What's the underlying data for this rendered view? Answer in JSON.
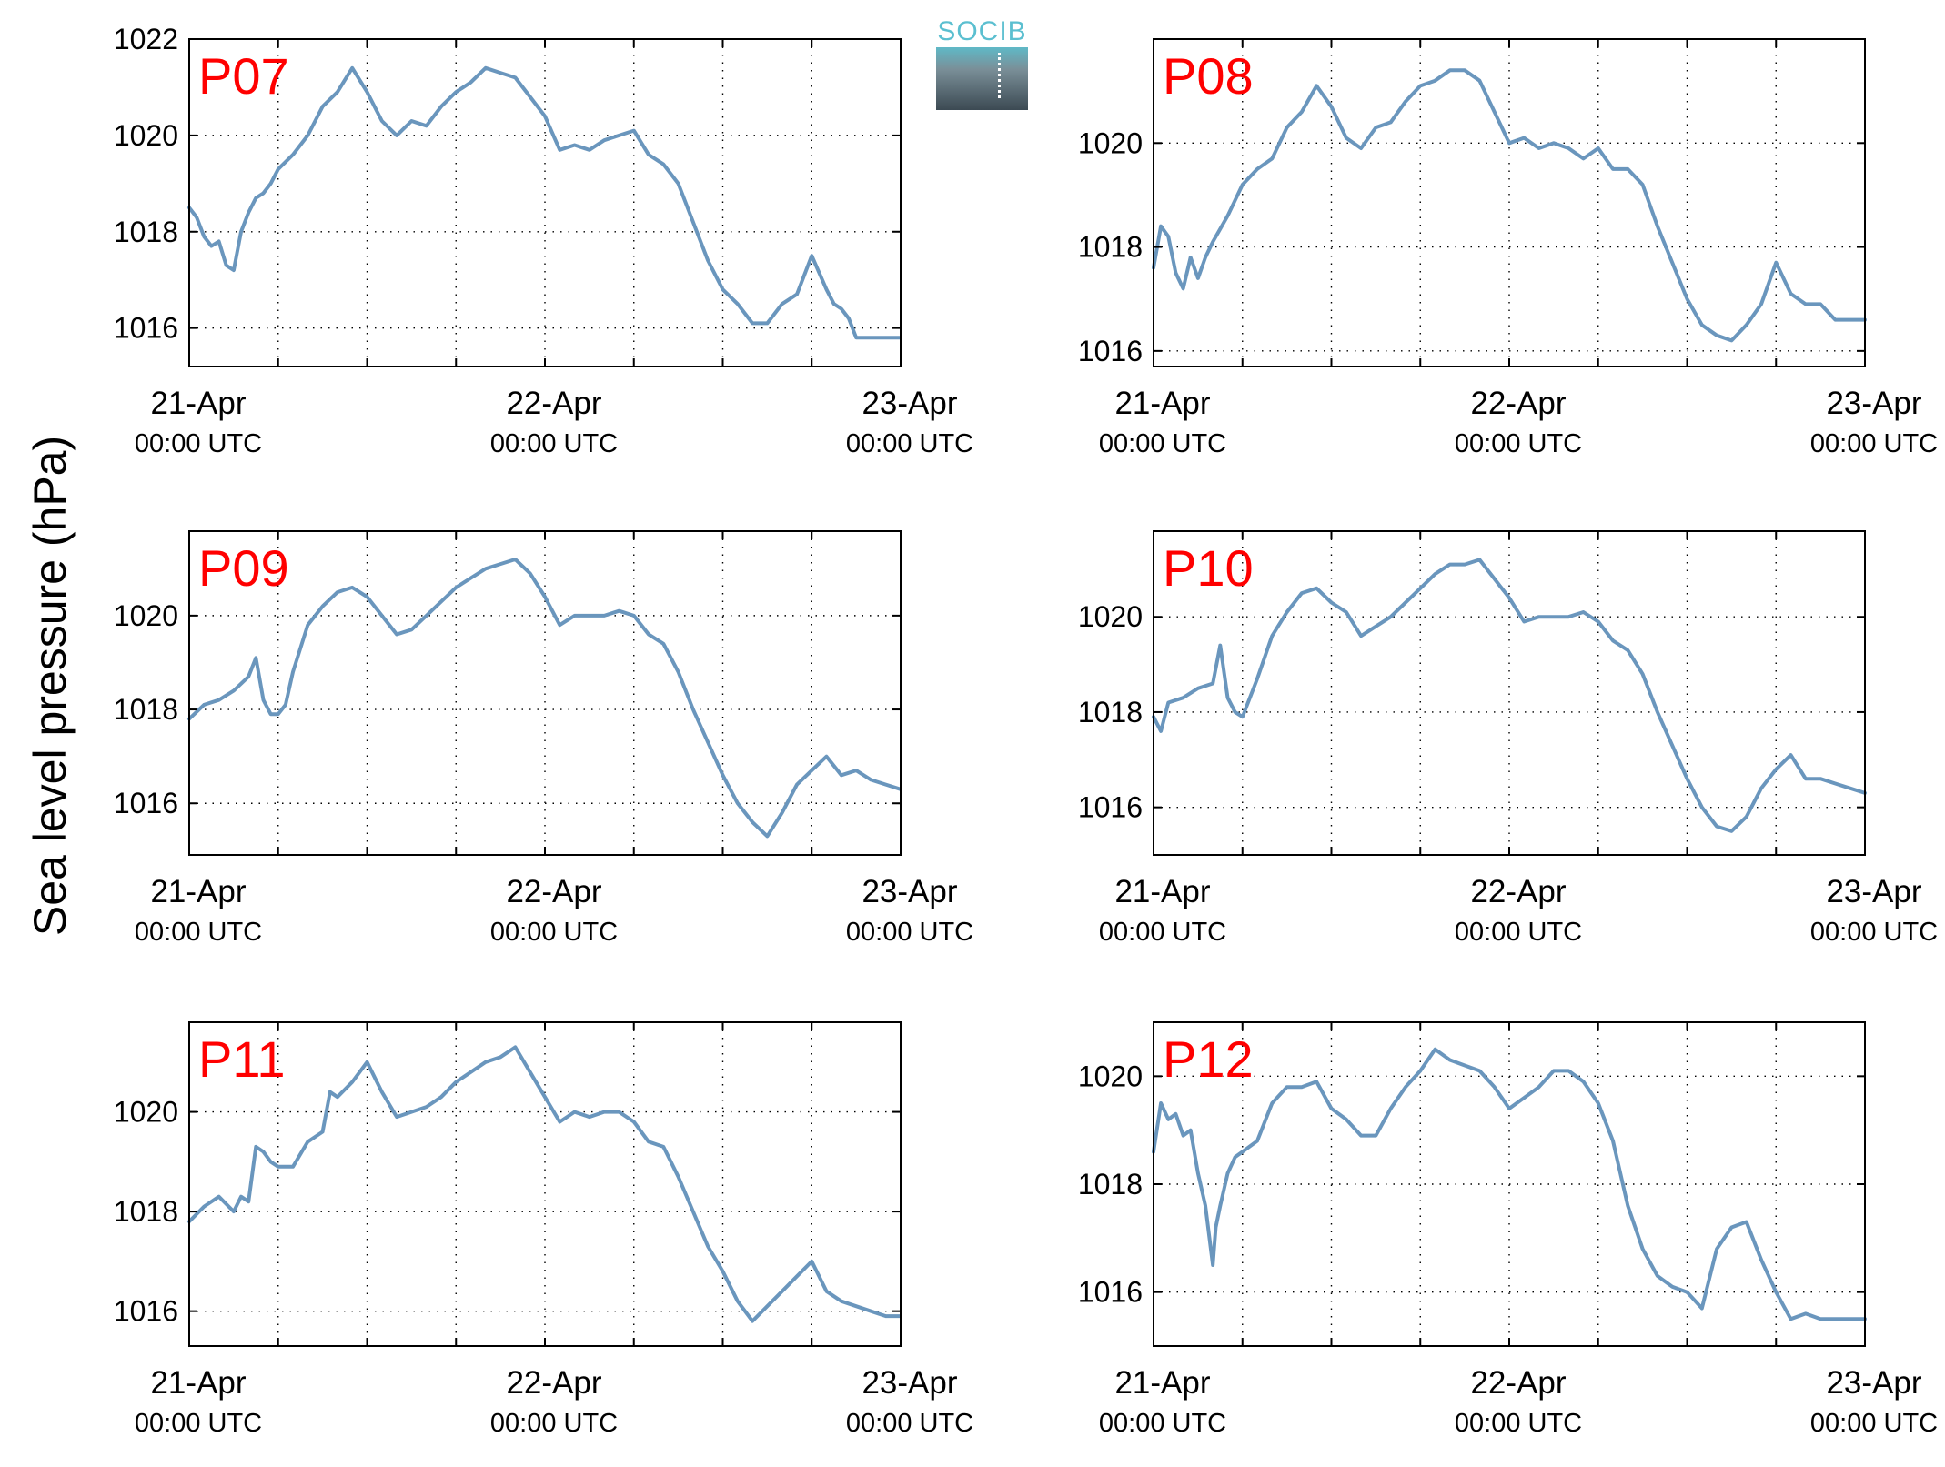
{
  "figure": {
    "ylabel": "Sea level pressure (hPa)",
    "logo_text": "SOCIB"
  },
  "chart_data": [
    {
      "type": "line",
      "panel": "P07",
      "xlim": [
        0,
        48
      ],
      "ylim": [
        1015.2,
        1022
      ],
      "yticks": [
        1016,
        1018,
        1020,
        1022
      ],
      "xtick_labels": [
        {
          "x": 0,
          "date": "21-Apr",
          "time": "00:00 UTC"
        },
        {
          "x": 24,
          "date": "22-Apr",
          "time": "00:00 UTC"
        },
        {
          "x": 48,
          "date": "23-Apr",
          "time": "00:00 UTC"
        }
      ],
      "grid": true,
      "color": "#6a96bd",
      "series": [
        {
          "x": [
            0,
            0.5,
            1,
            1.5,
            2,
            2.5,
            3,
            3.5,
            4,
            4.5,
            5,
            5.5,
            6,
            7,
            8,
            9,
            10,
            11,
            12,
            13,
            14,
            15,
            16,
            17,
            18,
            19,
            20,
            21,
            22,
            23,
            24,
            25,
            26,
            27,
            28,
            29,
            30,
            31,
            32,
            33,
            34,
            35,
            36,
            37,
            38,
            39,
            40,
            41,
            42,
            43,
            43.5,
            44,
            44.5,
            45,
            46,
            47,
            48
          ],
          "y": [
            1018.5,
            1018.3,
            1017.9,
            1017.7,
            1017.8,
            1017.3,
            1017.2,
            1018.0,
            1018.4,
            1018.7,
            1018.8,
            1019.0,
            1019.3,
            1019.6,
            1020.0,
            1020.6,
            1020.9,
            1021.4,
            1020.9,
            1020.3,
            1020.0,
            1020.3,
            1020.2,
            1020.6,
            1020.9,
            1021.1,
            1021.4,
            1021.3,
            1021.2,
            1020.8,
            1020.4,
            1019.7,
            1019.8,
            1019.7,
            1019.9,
            1020.0,
            1020.1,
            1019.6,
            1019.4,
            1019.0,
            1018.2,
            1017.4,
            1016.8,
            1016.5,
            1016.1,
            1016.1,
            1016.5,
            1016.7,
            1017.5,
            1016.8,
            1016.5,
            1016.4,
            1016.2,
            1015.8,
            1015.8,
            1015.8,
            1015.8
          ]
        }
      ]
    },
    {
      "type": "line",
      "panel": "P08",
      "xlim": [
        0,
        48
      ],
      "ylim": [
        1015.7,
        1022
      ],
      "yticks": [
        1016,
        1018,
        1020
      ],
      "xtick_labels": [
        {
          "x": 0,
          "date": "21-Apr",
          "time": "00:00 UTC"
        },
        {
          "x": 24,
          "date": "22-Apr",
          "time": "00:00 UTC"
        },
        {
          "x": 48,
          "date": "23-Apr",
          "time": "00:00 UTC"
        }
      ],
      "grid": true,
      "color": "#6a96bd",
      "series": [
        {
          "x": [
            0,
            0.5,
            1,
            1.5,
            2,
            2.5,
            3,
            3.5,
            4,
            5,
            6,
            7,
            8,
            9,
            10,
            11,
            12,
            13,
            14,
            15,
            16,
            17,
            18,
            19,
            20,
            21,
            22,
            23,
            24,
            25,
            26,
            27,
            28,
            29,
            30,
            31,
            32,
            33,
            34,
            35,
            36,
            37,
            38,
            39,
            40,
            41,
            42,
            43,
            44,
            45,
            46,
            47,
            48
          ],
          "y": [
            1017.6,
            1018.4,
            1018.2,
            1017.5,
            1017.2,
            1017.8,
            1017.4,
            1017.8,
            1018.1,
            1018.6,
            1019.2,
            1019.5,
            1019.7,
            1020.3,
            1020.6,
            1021.1,
            1020.7,
            1020.1,
            1019.9,
            1020.3,
            1020.4,
            1020.8,
            1021.1,
            1021.2,
            1021.4,
            1021.4,
            1021.2,
            1020.6,
            1020.0,
            1020.1,
            1019.9,
            1020.0,
            1019.9,
            1019.7,
            1019.9,
            1019.5,
            1019.5,
            1019.2,
            1018.4,
            1017.7,
            1017.0,
            1016.5,
            1016.3,
            1016.2,
            1016.5,
            1016.9,
            1017.7,
            1017.1,
            1016.9,
            1016.9,
            1016.6,
            1016.6,
            1016.6
          ]
        }
      ]
    },
    {
      "type": "line",
      "panel": "P09",
      "xlim": [
        0,
        48
      ],
      "ylim": [
        1014.9,
        1021.8
      ],
      "yticks": [
        1016,
        1018,
        1020
      ],
      "xtick_labels": [
        {
          "x": 0,
          "date": "21-Apr",
          "time": "00:00 UTC"
        },
        {
          "x": 24,
          "date": "22-Apr",
          "time": "00:00 UTC"
        },
        {
          "x": 48,
          "date": "23-Apr",
          "time": "00:00 UTC"
        }
      ],
      "grid": true,
      "color": "#6a96bd",
      "series": [
        {
          "x": [
            0,
            1,
            2,
            3,
            4,
            4.5,
            5,
            5.5,
            6,
            6.5,
            7,
            8,
            9,
            10,
            11,
            12,
            13,
            14,
            15,
            16,
            17,
            18,
            19,
            20,
            21,
            22,
            23,
            24,
            25,
            26,
            27,
            28,
            29,
            30,
            31,
            32,
            33,
            34,
            35,
            36,
            37,
            38,
            39,
            40,
            41,
            42,
            43,
            44,
            45,
            46,
            47,
            48
          ],
          "y": [
            1017.8,
            1018.1,
            1018.2,
            1018.4,
            1018.7,
            1019.1,
            1018.2,
            1017.9,
            1017.9,
            1018.1,
            1018.8,
            1019.8,
            1020.2,
            1020.5,
            1020.6,
            1020.4,
            1020.0,
            1019.6,
            1019.7,
            1020.0,
            1020.3,
            1020.6,
            1020.8,
            1021.0,
            1021.1,
            1021.2,
            1020.9,
            1020.4,
            1019.8,
            1020.0,
            1020.0,
            1020.0,
            1020.1,
            1020.0,
            1019.6,
            1019.4,
            1018.8,
            1018.0,
            1017.3,
            1016.6,
            1016.0,
            1015.6,
            1015.3,
            1015.8,
            1016.4,
            1016.7,
            1017.0,
            1016.6,
            1016.7,
            1016.5,
            1016.4,
            1016.3
          ]
        }
      ]
    },
    {
      "type": "line",
      "panel": "P10",
      "xlim": [
        0,
        48
      ],
      "ylim": [
        1015,
        1021.8
      ],
      "yticks": [
        1016,
        1018,
        1020
      ],
      "xtick_labels": [
        {
          "x": 0,
          "date": "21-Apr",
          "time": "00:00 UTC"
        },
        {
          "x": 24,
          "date": "22-Apr",
          "time": "00:00 UTC"
        },
        {
          "x": 48,
          "date": "23-Apr",
          "time": "00:00 UTC"
        }
      ],
      "grid": true,
      "color": "#6a96bd",
      "series": [
        {
          "x": [
            0,
            0.5,
            1,
            2,
            3,
            4,
            4.5,
            5,
            5.5,
            6,
            7,
            8,
            9,
            10,
            11,
            12,
            13,
            14,
            15,
            16,
            17,
            18,
            19,
            20,
            21,
            22,
            23,
            24,
            25,
            26,
            27,
            28,
            29,
            30,
            31,
            32,
            33,
            34,
            35,
            36,
            37,
            38,
            39,
            40,
            41,
            42,
            43,
            44,
            45,
            46,
            47,
            48
          ],
          "y": [
            1017.9,
            1017.6,
            1018.2,
            1018.3,
            1018.5,
            1018.6,
            1019.4,
            1018.3,
            1018.0,
            1017.9,
            1018.7,
            1019.6,
            1020.1,
            1020.5,
            1020.6,
            1020.3,
            1020.1,
            1019.6,
            1019.8,
            1020.0,
            1020.3,
            1020.6,
            1020.9,
            1021.1,
            1021.1,
            1021.2,
            1020.8,
            1020.4,
            1019.9,
            1020.0,
            1020.0,
            1020.0,
            1020.1,
            1019.9,
            1019.5,
            1019.3,
            1018.8,
            1018.0,
            1017.3,
            1016.6,
            1016.0,
            1015.6,
            1015.5,
            1015.8,
            1016.4,
            1016.8,
            1017.1,
            1016.6,
            1016.6,
            1016.5,
            1016.4,
            1016.3
          ]
        }
      ]
    },
    {
      "type": "line",
      "panel": "P11",
      "xlim": [
        0,
        48
      ],
      "ylim": [
        1015.3,
        1021.8
      ],
      "yticks": [
        1016,
        1018,
        1020
      ],
      "xtick_labels": [
        {
          "x": 0,
          "date": "21-Apr",
          "time": "00:00 UTC"
        },
        {
          "x": 24,
          "date": "22-Apr",
          "time": "00:00 UTC"
        },
        {
          "x": 48,
          "date": "23-Apr",
          "time": "00:00 UTC"
        }
      ],
      "grid": true,
      "color": "#6a96bd",
      "series": [
        {
          "x": [
            0,
            1,
            2,
            3,
            3.5,
            4,
            4.5,
            5,
            5.5,
            6,
            7,
            8,
            9,
            9.5,
            10,
            11,
            12,
            13,
            14,
            15,
            16,
            17,
            18,
            19,
            20,
            21,
            22,
            23,
            24,
            25,
            26,
            27,
            28,
            29,
            30,
            31,
            32,
            33,
            34,
            35,
            36,
            37,
            38,
            39,
            40,
            41,
            42,
            43,
            44,
            45,
            46,
            47,
            48
          ],
          "y": [
            1017.8,
            1018.1,
            1018.3,
            1018.0,
            1018.3,
            1018.2,
            1019.3,
            1019.2,
            1019.0,
            1018.9,
            1018.9,
            1019.4,
            1019.6,
            1020.4,
            1020.3,
            1020.6,
            1021.0,
            1020.4,
            1019.9,
            1020.0,
            1020.1,
            1020.3,
            1020.6,
            1020.8,
            1021.0,
            1021.1,
            1021.3,
            1020.8,
            1020.3,
            1019.8,
            1020.0,
            1019.9,
            1020.0,
            1020.0,
            1019.8,
            1019.4,
            1019.3,
            1018.7,
            1018.0,
            1017.3,
            1016.8,
            1016.2,
            1015.8,
            1016.1,
            1016.4,
            1016.7,
            1017.0,
            1016.4,
            1016.2,
            1016.1,
            1016.0,
            1015.9,
            1015.9
          ]
        }
      ]
    },
    {
      "type": "line",
      "panel": "P12",
      "xlim": [
        0,
        48
      ],
      "ylim": [
        1015,
        1021
      ],
      "yticks": [
        1016,
        1018,
        1020
      ],
      "xtick_labels": [
        {
          "x": 0,
          "date": "21-Apr",
          "time": "00:00 UTC"
        },
        {
          "x": 24,
          "date": "22-Apr",
          "time": "00:00 UTC"
        },
        {
          "x": 48,
          "date": "23-Apr",
          "time": "00:00 UTC"
        }
      ],
      "grid": true,
      "color": "#6a96bd",
      "series": [
        {
          "x": [
            0,
            0.5,
            1,
            1.5,
            2,
            2.5,
            3,
            3.5,
            4,
            4.2,
            4.5,
            5,
            5.5,
            6,
            7,
            8,
            9,
            10,
            11,
            12,
            13,
            14,
            15,
            16,
            17,
            18,
            19,
            20,
            21,
            22,
            23,
            24,
            25,
            26,
            27,
            28,
            29,
            30,
            31,
            32,
            33,
            34,
            35,
            36,
            37,
            38,
            39,
            40,
            41,
            42,
            43,
            44,
            45,
            46,
            47,
            48
          ],
          "y": [
            1018.6,
            1019.5,
            1019.2,
            1019.3,
            1018.9,
            1019.0,
            1018.2,
            1017.6,
            1016.5,
            1017.2,
            1017.6,
            1018.2,
            1018.5,
            1018.6,
            1018.8,
            1019.5,
            1019.8,
            1019.8,
            1019.9,
            1019.4,
            1019.2,
            1018.9,
            1018.9,
            1019.4,
            1019.8,
            1020.1,
            1020.5,
            1020.3,
            1020.2,
            1020.1,
            1019.8,
            1019.4,
            1019.6,
            1019.8,
            1020.1,
            1020.1,
            1019.9,
            1019.5,
            1018.8,
            1017.6,
            1016.8,
            1016.3,
            1016.1,
            1016.0,
            1015.7,
            1016.8,
            1017.2,
            1017.3,
            1016.6,
            1016.0,
            1015.5,
            1015.6,
            1015.5,
            1015.5,
            1015.5,
            1015.5
          ]
        }
      ]
    }
  ]
}
